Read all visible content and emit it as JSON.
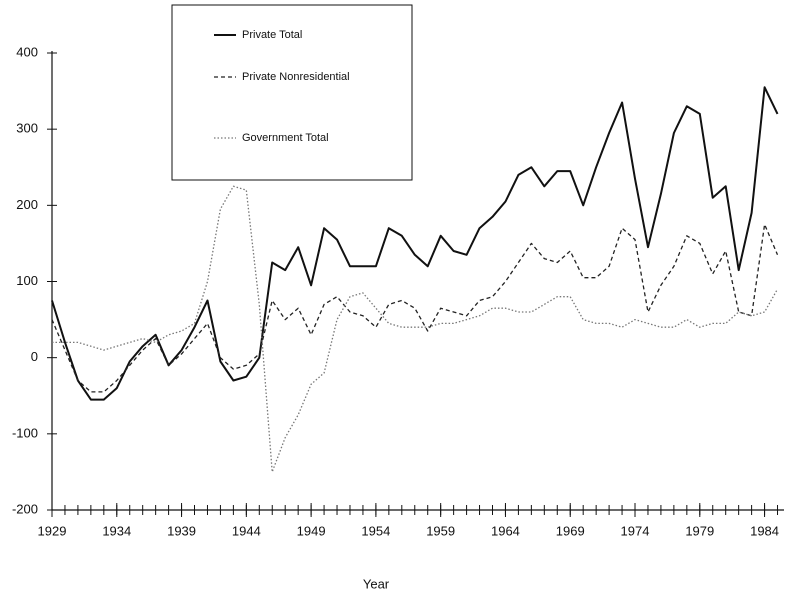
{
  "chart_data": {
    "type": "line",
    "x_label": "Year",
    "x": [
      1929,
      1930,
      1931,
      1932,
      1933,
      1934,
      1935,
      1936,
      1937,
      1938,
      1939,
      1940,
      1941,
      1942,
      1943,
      1944,
      1945,
      1946,
      1947,
      1948,
      1949,
      1950,
      1951,
      1952,
      1953,
      1954,
      1955,
      1956,
      1957,
      1958,
      1959,
      1960,
      1961,
      1962,
      1963,
      1964,
      1965,
      1966,
      1967,
      1968,
      1969,
      1970,
      1971,
      1972,
      1973,
      1974,
      1975,
      1976,
      1977,
      1978,
      1979,
      1980,
      1981,
      1982,
      1983,
      1984,
      1985
    ],
    "series": [
      {
        "name": "Private Total",
        "color": "#111111",
        "style": "solid",
        "values": [
          75,
          20,
          -30,
          -55,
          -55,
          -40,
          -5,
          15,
          30,
          -10,
          10,
          40,
          75,
          -5,
          -30,
          -25,
          0,
          125,
          115,
          145,
          95,
          170,
          155,
          120,
          120,
          120,
          170,
          160,
          135,
          120,
          160,
          140,
          135,
          170,
          185,
          205,
          240,
          250,
          225,
          245,
          245,
          200,
          250,
          295,
          335,
          235,
          145,
          215,
          295,
          330,
          320,
          210,
          225,
          115,
          190,
          355,
          320
        ]
      },
      {
        "name": "Private Nonresidential",
        "color": "#222222",
        "style": "dashed",
        "values": [
          50,
          10,
          -30,
          -45,
          -45,
          -30,
          -10,
          10,
          25,
          -10,
          5,
          25,
          45,
          0,
          -15,
          -10,
          5,
          75,
          50,
          65,
          30,
          70,
          80,
          60,
          55,
          40,
          70,
          75,
          65,
          35,
          65,
          60,
          55,
          75,
          80,
          100,
          125,
          150,
          130,
          125,
          140,
          105,
          105,
          120,
          170,
          155,
          60,
          95,
          120,
          160,
          150,
          110,
          140,
          60,
          55,
          175,
          135
        ]
      },
      {
        "name": "Government Total",
        "color": "#777777",
        "style": "dotted",
        "values": [
          20,
          20,
          20,
          15,
          10,
          15,
          20,
          25,
          20,
          30,
          35,
          45,
          100,
          195,
          225,
          220,
          70,
          -150,
          -105,
          -75,
          -35,
          -20,
          50,
          80,
          85,
          65,
          45,
          40,
          40,
          40,
          45,
          45,
          50,
          55,
          65,
          65,
          60,
          60,
          70,
          80,
          80,
          50,
          45,
          45,
          40,
          50,
          45,
          40,
          40,
          50,
          40,
          45,
          45,
          60,
          55,
          60,
          90
        ]
      }
    ],
    "xlim": [
      1929,
      1985.5
    ],
    "xticks": [
      1929,
      1934,
      1939,
      1944,
      1949,
      1954,
      1959,
      1964,
      1969,
      1974,
      1979,
      1984
    ],
    "ylim": [
      -200,
      400
    ],
    "yticks": [
      -200,
      -100,
      0,
      100,
      200,
      300,
      400
    ]
  }
}
